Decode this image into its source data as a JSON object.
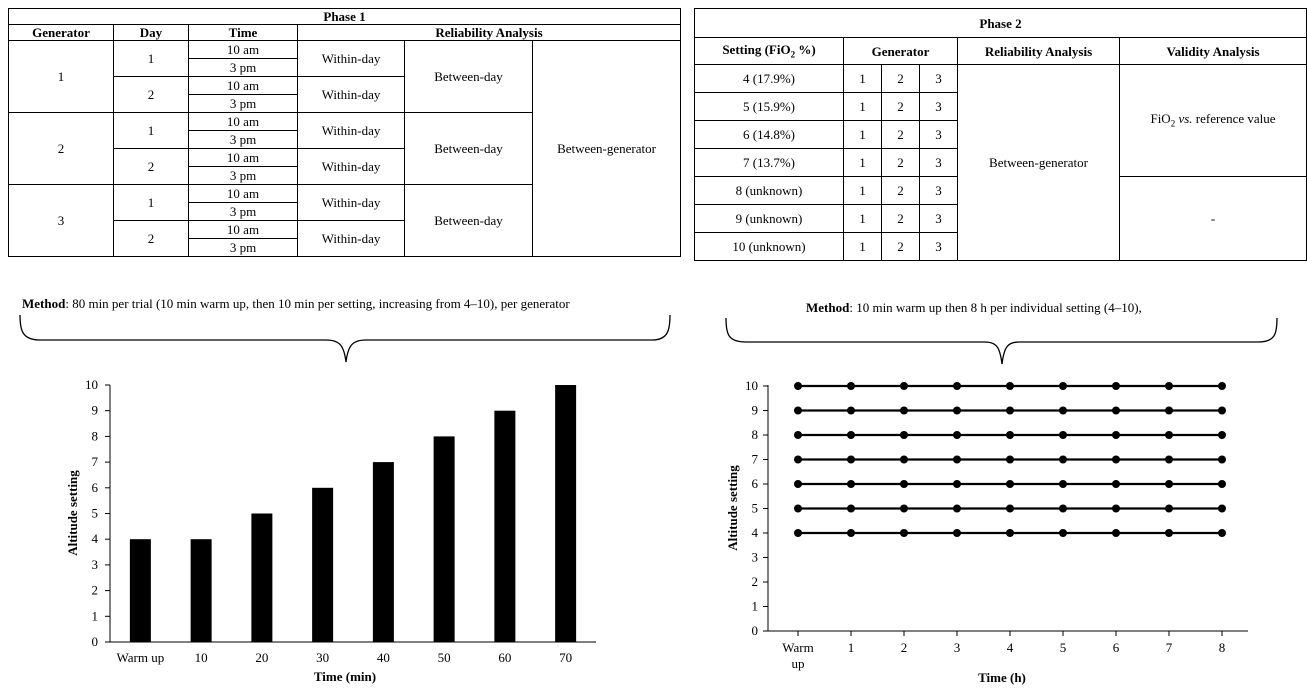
{
  "phase1": {
    "title": "Phase 1",
    "headers": [
      "Generator",
      "Day",
      "Time",
      "Reliability Analysis"
    ],
    "generators": [
      "1",
      "2",
      "3"
    ],
    "days": [
      "1",
      "2"
    ],
    "times": [
      "10 am",
      "3 pm"
    ],
    "within_day": "Within-day",
    "between_day": "Between-day",
    "between_generator": "Between-generator"
  },
  "phase2": {
    "title": "Phase 2",
    "headers": {
      "setting_pre": "Setting (FiO",
      "setting_sub": "2",
      "setting_post": " %)",
      "generator": "Generator",
      "reliability": "Reliability Analysis",
      "validity": "Validity Analysis"
    },
    "settings": [
      "4 (17.9%)",
      "5 (15.9%)",
      "6 (14.8%)",
      "7 (13.7%)",
      "8 (unknown)",
      "9 (unknown)",
      "10 (unknown)"
    ],
    "generator_cols": [
      "1",
      "2",
      "3"
    ],
    "reliability": "Between-generator",
    "validity_top": {
      "pre": "FiO",
      "sub": "2",
      "mid": " ",
      "ital": "vs.",
      "post": " reference value"
    },
    "validity_bottom": "-"
  },
  "method_left": {
    "bold": "Method",
    "text": ": 80 min per trial (10 min warm up, then 10 min per setting, increasing from 4–10), per generator"
  },
  "method_right": {
    "bold": "Method",
    "text": ": 10 min warm up then 8 h per individual setting (4–10),"
  },
  "chart_data": [
    {
      "type": "bar",
      "categories": [
        "Warm up",
        "10",
        "20",
        "30",
        "40",
        "50",
        "60",
        "70"
      ],
      "values": [
        4,
        4,
        5,
        6,
        7,
        8,
        9,
        10
      ],
      "xlabel": "Time (min)",
      "ylabel": "Altitude setting",
      "ylim": [
        0,
        10
      ],
      "yticks": [
        "0",
        "1",
        "2",
        "3",
        "4",
        "5",
        "6",
        "7",
        "8",
        "9",
        "10"
      ],
      "color": "#000000",
      "grid": false
    },
    {
      "type": "line",
      "x": [
        "Warm up",
        "1",
        "2",
        "3",
        "4",
        "5",
        "6",
        "7",
        "8"
      ],
      "x_tick_lines": [
        [
          "Warm",
          "up"
        ],
        [
          "1"
        ],
        [
          "2"
        ],
        [
          "3"
        ],
        [
          "4"
        ],
        [
          "5"
        ],
        [
          "6"
        ],
        [
          "7"
        ],
        [
          "8"
        ]
      ],
      "series": [
        {
          "values": [
            10,
            10,
            10,
            10,
            10,
            10,
            10,
            10,
            10
          ]
        },
        {
          "values": [
            9,
            9,
            9,
            9,
            9,
            9,
            9,
            9,
            9
          ]
        },
        {
          "values": [
            8,
            8,
            8,
            8,
            8,
            8,
            8,
            8,
            8
          ]
        },
        {
          "values": [
            7,
            7,
            7,
            7,
            7,
            7,
            7,
            7,
            7
          ]
        },
        {
          "values": [
            6,
            6,
            6,
            6,
            6,
            6,
            6,
            6,
            6
          ]
        },
        {
          "values": [
            5,
            5,
            5,
            5,
            5,
            5,
            5,
            5,
            5
          ]
        },
        {
          "values": [
            4,
            4,
            4,
            4,
            4,
            4,
            4,
            4,
            4
          ]
        }
      ],
      "xlabel": "Time (h)",
      "ylabel": "Altitude setting",
      "ylim": [
        0,
        10
      ],
      "yticks": [
        "0",
        "1",
        "2",
        "3",
        "4",
        "5",
        "6",
        "7",
        "8",
        "9",
        "10"
      ],
      "color": "#000000",
      "grid": false
    }
  ]
}
